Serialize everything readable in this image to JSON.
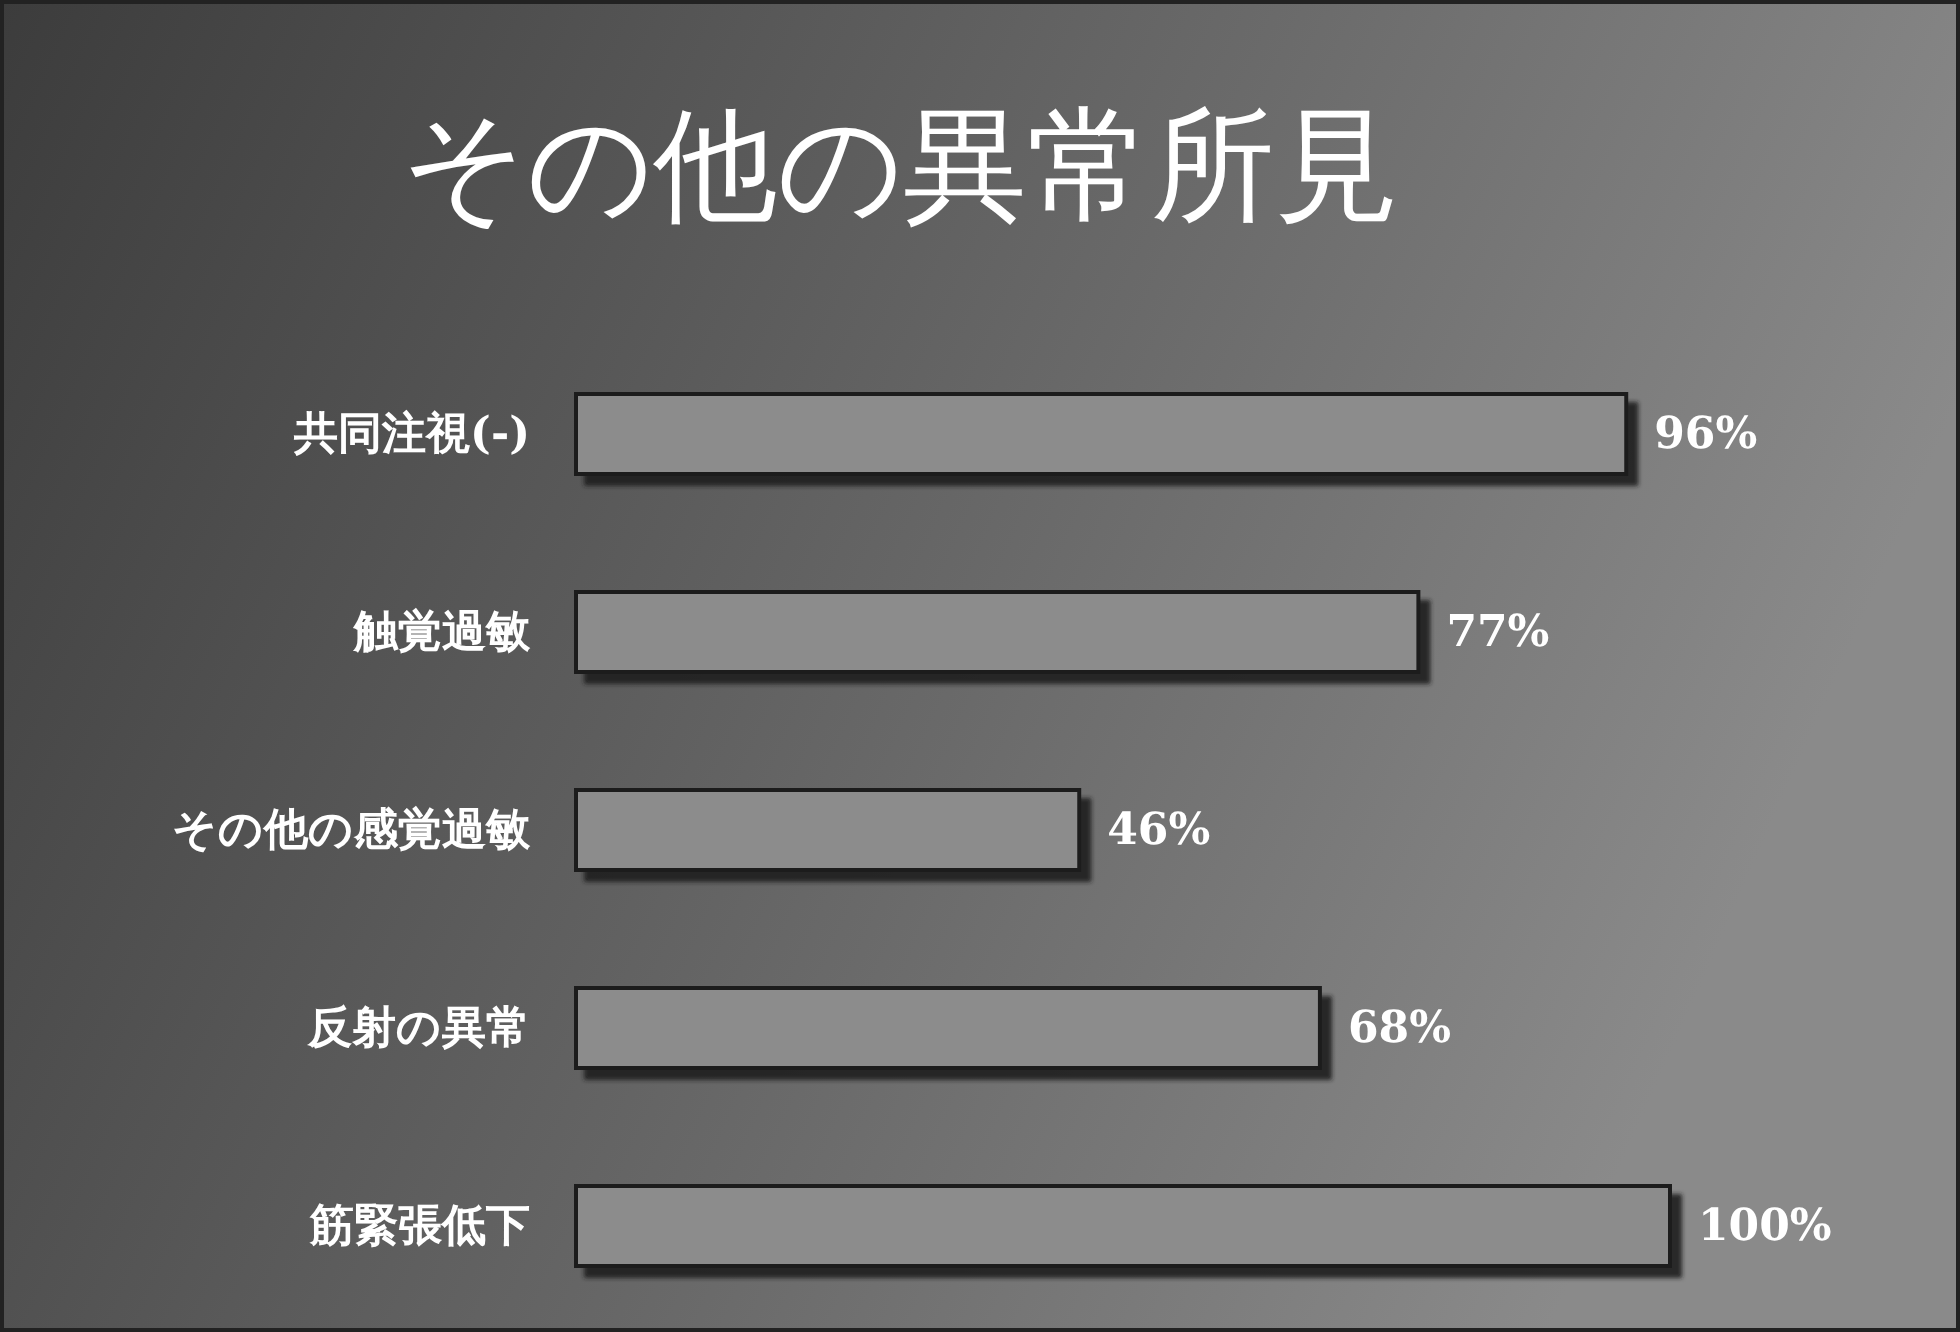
{
  "chart_data": {
    "type": "bar",
    "orientation": "horizontal",
    "title": "その他の異常所見",
    "categories": [
      "共同注視(-)",
      "触覚過敏",
      "その他の感覚過敏",
      "反射の異常",
      "筋緊張低下"
    ],
    "values": [
      96,
      77,
      46,
      68,
      100
    ],
    "value_labels": [
      "96%",
      "77%",
      "46%",
      "68%",
      "100%"
    ],
    "color": "#8c8c8c"
  }
}
